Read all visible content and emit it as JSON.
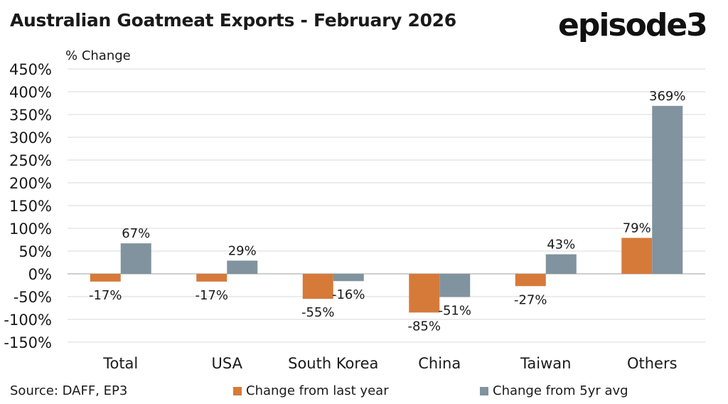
{
  "title": "Australian Goatmeat Exports - February 2026",
  "logo": "episode3",
  "source": "Source: DAFF, EP3",
  "chart_data": {
    "type": "bar",
    "ylabel": "% Change",
    "ylim": [
      -150,
      450
    ],
    "yticks": [
      450,
      400,
      350,
      300,
      250,
      200,
      150,
      100,
      50,
      0,
      -50,
      -100,
      -150
    ],
    "ytick_labels": [
      "450%",
      "400%",
      "350%",
      "300%",
      "250%",
      "200%",
      "150%",
      "100%",
      "50%",
      "0%",
      "-50%",
      "-100%",
      "-150%"
    ],
    "grid": true,
    "legend_position": "bottom",
    "categories": [
      "Total",
      "USA",
      "South Korea",
      "China",
      "Taiwan",
      "Others"
    ],
    "series": [
      {
        "name": "Change from last year",
        "color": "#d67a3a",
        "values": [
          -17,
          -17,
          -55,
          -85,
          -27,
          79
        ],
        "labels": [
          "-17%",
          "-17%",
          "-55%",
          "-85%",
          "-27%",
          "79%"
        ]
      },
      {
        "name": "Change from 5yr avg",
        "color": "#80939e",
        "values": [
          67,
          29,
          -16,
          -51,
          43,
          369
        ],
        "labels": [
          "67%",
          "29%",
          "-16%",
          "-51%",
          "43%",
          "369%"
        ]
      }
    ]
  }
}
